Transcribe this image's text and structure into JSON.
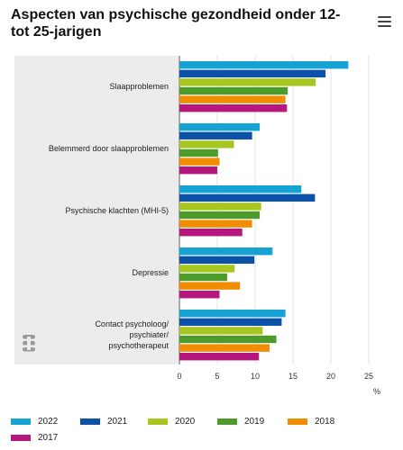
{
  "title": "Aspecten van psychische gezondheid onder 12- tot 25-jarigen",
  "menu_icon": "hamburger-menu-icon",
  "logo_icon": "cbs-logo-icon",
  "chart_data": {
    "type": "bar",
    "orientation": "horizontal",
    "title": "Aspecten van psychische gezondheid onder 12- tot 25-jarigen",
    "xlabel": "%",
    "ylabel": "",
    "xlim": [
      0,
      25
    ],
    "ticks": [
      0,
      5,
      10,
      15,
      20,
      25
    ],
    "grid": true,
    "legend_position": "bottom",
    "categories": [
      [
        "Slaapproblemen"
      ],
      [
        "Belemmerd door slaapproblemen"
      ],
      [
        "Psychische klachten (MHI-5)"
      ],
      [
        "Depressie"
      ],
      [
        "Contact psycholoog/",
        "psychiater/",
        "psychotherapeut"
      ]
    ],
    "series": [
      {
        "name": "2022",
        "color": "#17a2d4",
        "values": [
          22.3,
          10.6,
          16.1,
          12.3,
          14.0
        ]
      },
      {
        "name": "2021",
        "color": "#0b52a8",
        "values": [
          19.3,
          9.6,
          17.9,
          9.9,
          13.5
        ]
      },
      {
        "name": "2020",
        "color": "#a7c720",
        "values": [
          18.0,
          7.2,
          10.8,
          7.3,
          11.0
        ]
      },
      {
        "name": "2019",
        "color": "#4d9b2a",
        "values": [
          14.3,
          5.1,
          10.6,
          6.3,
          12.8
        ]
      },
      {
        "name": "2018",
        "color": "#f28c00",
        "values": [
          14.0,
          5.3,
          9.6,
          8.0,
          11.9
        ]
      },
      {
        "name": "2017",
        "color": "#b5177d",
        "values": [
          14.2,
          5.0,
          8.3,
          5.3,
          10.5
        ]
      }
    ]
  }
}
